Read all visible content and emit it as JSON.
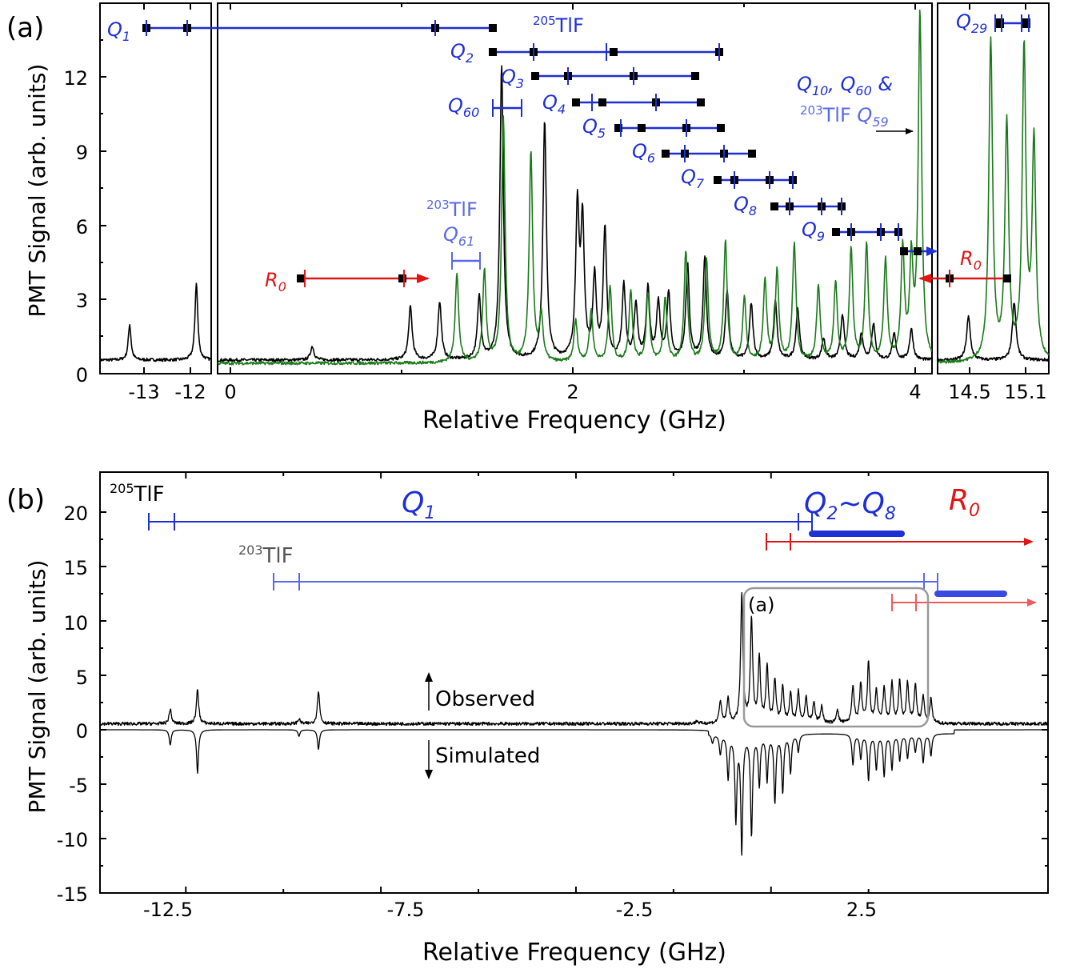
{
  "panels": {
    "a": {
      "label": "(a)",
      "ylabel": "PMT Signal (arb. units)",
      "xlabel": "Relative Frequency (GHz)",
      "yticks": [
        "0",
        "3",
        "6",
        "9",
        "12"
      ],
      "left_xticks": [
        "-13",
        "-12"
      ],
      "mid_xticks": [
        "0",
        "2",
        "4"
      ],
      "right_xticks": [
        "14.5",
        "15.1"
      ],
      "isotope_205": "205",
      "isotope_203": "203",
      "species": "TlF",
      "label_Q10_Q60": "Q10, Q60 &",
      "label_203_Q59": "TlF Q59",
      "label_Q61": "Q61"
    },
    "b": {
      "label": "(b)",
      "ylabel": "PMT Signal (arb. units)",
      "xlabel": "Relative Frequency (GHz)",
      "yticks": [
        "20",
        "15",
        "10",
        "5",
        "0",
        "-5",
        "-10",
        "-15"
      ],
      "xticks": [
        "-12.5",
        "-7.5",
        "-2.5",
        "2.5"
      ],
      "isotope_205": "205",
      "isotope_203": "203",
      "species": "TlF",
      "label_Q1": "Q1",
      "label_Q2_Q8": "Q2~Q8",
      "label_R0": "R0",
      "inset_label": "(a)",
      "observed": "Observed",
      "simulated": "Simulated"
    }
  },
  "colors": {
    "observed": "#000000",
    "green": "#1a7a1a",
    "blue": "#1f2fd6",
    "light_blue": "#5a6ae6",
    "red": "#e01515",
    "light_red": "#f05a5a",
    "box": "#999999"
  },
  "chart_data": [
    {
      "type": "line",
      "panel": "a",
      "xlabel": "Relative Frequency (GHz)",
      "ylabel": "PMT Signal (arb. units)",
      "ylim": [
        0,
        14.5
      ],
      "xlim_segments": [
        [
          -13.3,
          -11.8
        ],
        [
          -0.1,
          4.05
        ],
        [
          14.3,
          15.2
        ]
      ],
      "series": [
        {
          "line_color": "black",
          "peaks": [
            [
              -12.9,
              2.0
            ],
            [
              -12.0,
              3.7
            ],
            [
              0.45,
              1.1
            ],
            [
              1.02,
              2.7
            ],
            [
              1.19,
              2.9
            ],
            [
              1.42,
              3.1
            ],
            [
              1.55,
              12.4
            ],
            [
              1.8,
              10.2
            ],
            [
              1.99,
              6.5
            ],
            [
              2.02,
              5.9
            ],
            [
              2.09,
              3.8
            ],
            [
              2.15,
              5.8
            ],
            [
              2.26,
              3.5
            ],
            [
              2.33,
              2.7
            ],
            [
              2.4,
              3.4
            ],
            [
              2.46,
              2.8
            ],
            [
              2.52,
              3.2
            ],
            [
              2.63,
              4.4
            ],
            [
              2.73,
              4.6
            ],
            [
              2.86,
              3.3
            ],
            [
              3.0,
              2.8
            ],
            [
              3.14,
              2.9
            ],
            [
              3.27,
              2.6
            ],
            [
              3.42,
              1.4
            ],
            [
              3.53,
              2.4
            ],
            [
              3.64,
              1.6
            ],
            [
              3.71,
              2.0
            ],
            [
              3.83,
              1.6
            ],
            [
              3.93,
              1.8
            ],
            [
              14.55,
              2.3
            ],
            [
              14.92,
              2.9
            ]
          ]
        },
        {
          "line_color": "green",
          "peaks": [
            [
              1.29,
              4.0
            ],
            [
              1.45,
              4.1
            ],
            [
              1.56,
              10.3
            ],
            [
              1.72,
              8.9
            ],
            [
              1.78,
              2.3
            ],
            [
              1.98,
              2.1
            ],
            [
              2.07,
              2.5
            ],
            [
              2.18,
              3.5
            ],
            [
              2.3,
              3.3
            ],
            [
              2.4,
              3.2
            ],
            [
              2.5,
              3.0
            ],
            [
              2.62,
              4.9
            ],
            [
              2.74,
              4.6
            ],
            [
              2.85,
              5.3
            ],
            [
              2.96,
              3.0
            ],
            [
              3.08,
              3.7
            ],
            [
              3.15,
              4.1
            ],
            [
              3.25,
              5.2
            ],
            [
              3.39,
              3.5
            ],
            [
              3.49,
              3.6
            ],
            [
              3.58,
              5.0
            ],
            [
              3.67,
              5.1
            ],
            [
              3.78,
              4.5
            ],
            [
              3.88,
              4.9
            ],
            [
              3.93,
              4.3
            ],
            [
              3.98,
              14.5
            ],
            [
              14.73,
              13.4
            ],
            [
              14.86,
              10.0
            ],
            [
              15.0,
              12.9
            ],
            [
              15.08,
              9.2
            ]
          ]
        }
      ]
    },
    {
      "type": "line",
      "panel": "b",
      "xlabel": "Relative Frequency (GHz)",
      "ylabel": "PMT Signal (arb. units)",
      "ylim": [
        -15,
        23
      ],
      "xlim": [
        -14.7,
        9.6
      ],
      "series": [
        {
          "name": "Observed",
          "peaks": [
            [
              -12.9,
              1.9
            ],
            [
              -12.2,
              3.7
            ],
            [
              -9.6,
              1.0
            ],
            [
              -9.1,
              3.6
            ],
            [
              0.6,
              0.8
            ],
            [
              1.2,
              2.6
            ],
            [
              1.4,
              2.8
            ],
            [
              1.75,
              12.4
            ],
            [
              2.0,
              10.1
            ],
            [
              2.2,
              6.5
            ],
            [
              2.4,
              5.8
            ],
            [
              2.6,
              4.5
            ],
            [
              2.8,
              3.8
            ],
            [
              3.0,
              3.3
            ],
            [
              3.2,
              3.4
            ],
            [
              3.4,
              2.9
            ],
            [
              3.6,
              2.4
            ],
            [
              3.8,
              2.1
            ],
            [
              4.2,
              1.8
            ],
            [
              4.6,
              4.0
            ],
            [
              4.8,
              4.1
            ],
            [
              5.0,
              6.1
            ],
            [
              5.2,
              3.5
            ],
            [
              5.4,
              3.7
            ],
            [
              5.6,
              4.2
            ],
            [
              5.8,
              4.4
            ],
            [
              6.0,
              4.2
            ],
            [
              6.2,
              4.1
            ],
            [
              6.4,
              3.0
            ],
            [
              6.6,
              2.8
            ]
          ]
        },
        {
          "name": "Simulated",
          "peaks": [
            [
              -12.9,
              -1.4
            ],
            [
              -12.2,
              -4.0
            ],
            [
              -9.6,
              -0.6
            ],
            [
              -9.1,
              -1.8
            ],
            [
              1.0,
              -0.8
            ],
            [
              1.2,
              -1.8
            ],
            [
              1.4,
              -4.0
            ],
            [
              1.6,
              -7.8
            ],
            [
              1.75,
              -10.8
            ],
            [
              2.0,
              -9.2
            ],
            [
              2.2,
              -4.6
            ],
            [
              2.4,
              -4.2
            ],
            [
              2.6,
              -6.2
            ],
            [
              2.8,
              -5.3
            ],
            [
              3.0,
              -3.5
            ],
            [
              3.2,
              -1.6
            ],
            [
              4.6,
              -2.8
            ],
            [
              4.8,
              -2.2
            ],
            [
              5.0,
              -4.2
            ],
            [
              5.2,
              -3.2
            ],
            [
              5.4,
              -3.8
            ],
            [
              5.6,
              -3.2
            ],
            [
              5.8,
              -2.4
            ],
            [
              6.0,
              -2.2
            ],
            [
              6.2,
              -1.6
            ],
            [
              6.4,
              -2.6
            ],
            [
              6.6,
              -2.0
            ]
          ]
        }
      ]
    }
  ]
}
